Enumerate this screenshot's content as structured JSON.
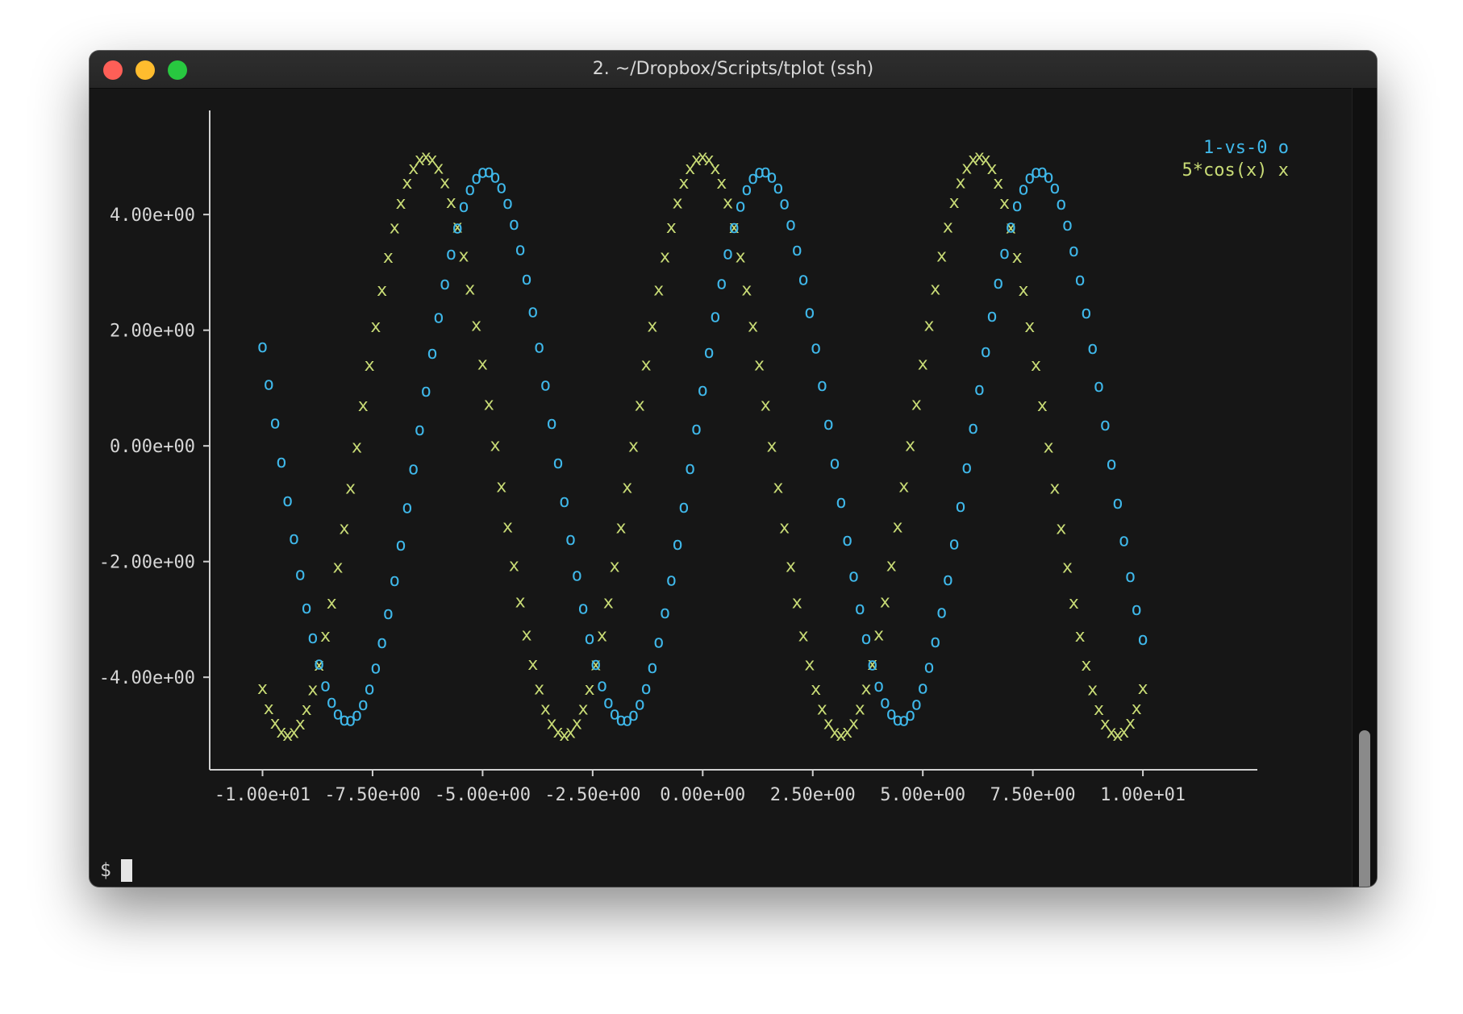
{
  "window": {
    "title": "2. ~/Dropbox/Scripts/tplot (ssh)",
    "buttons": [
      "close",
      "minimize",
      "zoom"
    ]
  },
  "terminal": {
    "prompt": "$",
    "background": "#161616"
  },
  "chart_data": {
    "type": "scatter",
    "title": "",
    "xlabel": "",
    "ylabel": "",
    "x_ticks": [
      "-1.00e+01",
      "-7.50e+00",
      "-5.00e+00",
      "-2.50e+00",
      "0.00e+00",
      "2.50e+00",
      "5.00e+00",
      "7.50e+00",
      "1.00e+01"
    ],
    "y_ticks": [
      "4.00e+00",
      "2.00e+00",
      "0.00e+00",
      "-2.00e+00",
      "-4.00e+00"
    ],
    "xlim": [
      -11.2,
      12.6
    ],
    "ylim": [
      -5.6,
      5.8
    ],
    "grid": false,
    "legend": "top-right",
    "series": [
      {
        "name": "1-vs-0",
        "marker": "o",
        "color": "#3fb8ea",
        "x": [],
        "y": []
      },
      {
        "name": "5*cos(x)",
        "marker": "x",
        "color": "#c9dc76",
        "x": [],
        "y": []
      }
    ]
  }
}
